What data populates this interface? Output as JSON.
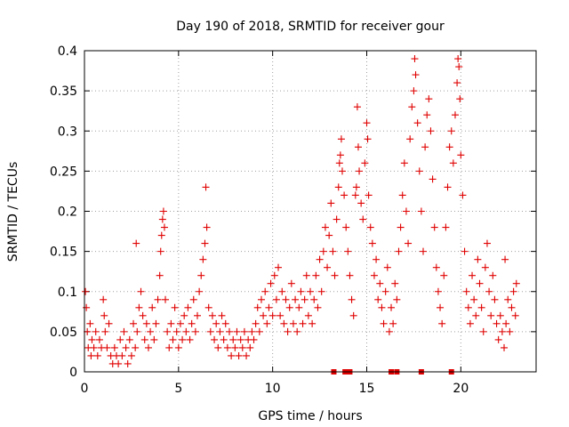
{
  "chart_data": {
    "type": "scatter",
    "title": "Day 190 of 2018, SRMTID for receiver gour",
    "xlabel": "GPS time / hours",
    "ylabel": "SRMTID / TECUs",
    "xlim": [
      0,
      24
    ],
    "ylim": [
      0,
      0.4
    ],
    "xticks": [
      0,
      5,
      10,
      15,
      20
    ],
    "xtick_labels": [
      "0",
      "5",
      "10",
      "15",
      "20"
    ],
    "yticks": [
      0,
      0.05,
      0.1,
      0.15,
      0.2,
      0.25,
      0.3,
      0.35,
      0.4
    ],
    "ytick_labels": [
      "0",
      "0.05",
      "0.1",
      "0.15",
      "0.2",
      "0.25",
      "0.3",
      "0.35",
      "0.4"
    ],
    "grid": true,
    "marker_color": "#e00000",
    "series": [
      {
        "name": "SRMTID",
        "marker": "plus",
        "points": [
          [
            0.05,
            0.1
          ],
          [
            0.1,
            0.08
          ],
          [
            0.15,
            0.05
          ],
          [
            0.2,
            0.03
          ],
          [
            0.3,
            0.06
          ],
          [
            0.35,
            0.02
          ],
          [
            0.4,
            0.04
          ],
          [
            0.5,
            0.03
          ],
          [
            0.6,
            0.05
          ],
          [
            0.7,
            0.02
          ],
          [
            0.8,
            0.04
          ],
          [
            0.9,
            0.03
          ],
          [
            1.0,
            0.09
          ],
          [
            1.05,
            0.07
          ],
          [
            1.1,
            0.05
          ],
          [
            1.2,
            0.03
          ],
          [
            1.3,
            0.06
          ],
          [
            1.4,
            0.02
          ],
          [
            1.5,
            0.01
          ],
          [
            1.6,
            0.03
          ],
          [
            1.7,
            0.02
          ],
          [
            1.8,
            0.01
          ],
          [
            1.9,
            0.04
          ],
          [
            2.0,
            0.02
          ],
          [
            2.1,
            0.05
          ],
          [
            2.2,
            0.03
          ],
          [
            2.3,
            0.01
          ],
          [
            2.4,
            0.04
          ],
          [
            2.5,
            0.02
          ],
          [
            2.6,
            0.06
          ],
          [
            2.7,
            0.03
          ],
          [
            2.75,
            0.16
          ],
          [
            2.8,
            0.05
          ],
          [
            2.9,
            0.08
          ],
          [
            3.0,
            0.1
          ],
          [
            3.1,
            0.07
          ],
          [
            3.2,
            0.04
          ],
          [
            3.3,
            0.06
          ],
          [
            3.4,
            0.03
          ],
          [
            3.5,
            0.05
          ],
          [
            3.6,
            0.08
          ],
          [
            3.7,
            0.04
          ],
          [
            3.8,
            0.06
          ],
          [
            3.9,
            0.09
          ],
          [
            4.0,
            0.12
          ],
          [
            4.05,
            0.15
          ],
          [
            4.1,
            0.17
          ],
          [
            4.15,
            0.19
          ],
          [
            4.2,
            0.2
          ],
          [
            4.25,
            0.18
          ],
          [
            4.3,
            0.09
          ],
          [
            4.4,
            0.05
          ],
          [
            4.5,
            0.03
          ],
          [
            4.6,
            0.06
          ],
          [
            4.7,
            0.04
          ],
          [
            4.8,
            0.08
          ],
          [
            4.9,
            0.05
          ],
          [
            5.0,
            0.03
          ],
          [
            5.1,
            0.06
          ],
          [
            5.2,
            0.04
          ],
          [
            5.3,
            0.07
          ],
          [
            5.4,
            0.05
          ],
          [
            5.5,
            0.08
          ],
          [
            5.6,
            0.04
          ],
          [
            5.7,
            0.06
          ],
          [
            5.8,
            0.09
          ],
          [
            5.9,
            0.05
          ],
          [
            6.0,
            0.07
          ],
          [
            6.1,
            0.1
          ],
          [
            6.2,
            0.12
          ],
          [
            6.3,
            0.14
          ],
          [
            6.4,
            0.16
          ],
          [
            6.45,
            0.23
          ],
          [
            6.5,
            0.18
          ],
          [
            6.6,
            0.08
          ],
          [
            6.7,
            0.05
          ],
          [
            6.8,
            0.07
          ],
          [
            6.9,
            0.04
          ],
          [
            7.0,
            0.06
          ],
          [
            7.1,
            0.03
          ],
          [
            7.2,
            0.05
          ],
          [
            7.3,
            0.07
          ],
          [
            7.4,
            0.04
          ],
          [
            7.5,
            0.06
          ],
          [
            7.6,
            0.03
          ],
          [
            7.7,
            0.05
          ],
          [
            7.8,
            0.02
          ],
          [
            7.9,
            0.04
          ],
          [
            8.0,
            0.03
          ],
          [
            8.1,
            0.05
          ],
          [
            8.2,
            0.02
          ],
          [
            8.3,
            0.04
          ],
          [
            8.4,
            0.03
          ],
          [
            8.5,
            0.05
          ],
          [
            8.6,
            0.02
          ],
          [
            8.7,
            0.04
          ],
          [
            8.8,
            0.03
          ],
          [
            8.9,
            0.05
          ],
          [
            9.0,
            0.04
          ],
          [
            9.1,
            0.06
          ],
          [
            9.2,
            0.08
          ],
          [
            9.3,
            0.05
          ],
          [
            9.4,
            0.09
          ],
          [
            9.5,
            0.07
          ],
          [
            9.6,
            0.1
          ],
          [
            9.7,
            0.06
          ],
          [
            9.8,
            0.08
          ],
          [
            9.9,
            0.11
          ],
          [
            10.0,
            0.07
          ],
          [
            10.1,
            0.12
          ],
          [
            10.2,
            0.09
          ],
          [
            10.3,
            0.13
          ],
          [
            10.4,
            0.07
          ],
          [
            10.5,
            0.1
          ],
          [
            10.6,
            0.06
          ],
          [
            10.7,
            0.09
          ],
          [
            10.8,
            0.05
          ],
          [
            10.9,
            0.08
          ],
          [
            11.0,
            0.11
          ],
          [
            11.1,
            0.06
          ],
          [
            11.2,
            0.09
          ],
          [
            11.3,
            0.05
          ],
          [
            11.4,
            0.08
          ],
          [
            11.5,
            0.1
          ],
          [
            11.6,
            0.06
          ],
          [
            11.7,
            0.09
          ],
          [
            11.8,
            0.12
          ],
          [
            11.9,
            0.07
          ],
          [
            12.0,
            0.1
          ],
          [
            12.1,
            0.06
          ],
          [
            12.2,
            0.09
          ],
          [
            12.3,
            0.12
          ],
          [
            12.4,
            0.08
          ],
          [
            12.5,
            0.14
          ],
          [
            12.6,
            0.1
          ],
          [
            12.7,
            0.15
          ],
          [
            12.8,
            0.18
          ],
          [
            12.9,
            0.13
          ],
          [
            13.0,
            0.17
          ],
          [
            13.1,
            0.21
          ],
          [
            13.2,
            0.15
          ],
          [
            13.3,
            0.12
          ],
          [
            13.4,
            0.19
          ],
          [
            13.5,
            0.23
          ],
          [
            13.55,
            0.26
          ],
          [
            13.6,
            0.27
          ],
          [
            13.65,
            0.29
          ],
          [
            13.7,
            0.25
          ],
          [
            13.8,
            0.22
          ],
          [
            13.9,
            0.18
          ],
          [
            14.0,
            0.15
          ],
          [
            14.1,
            0.12
          ],
          [
            14.2,
            0.09
          ],
          [
            14.3,
            0.07
          ],
          [
            14.4,
            0.22
          ],
          [
            14.45,
            0.23
          ],
          [
            14.5,
            0.33
          ],
          [
            14.55,
            0.28
          ],
          [
            14.6,
            0.25
          ],
          [
            14.7,
            0.21
          ],
          [
            14.8,
            0.19
          ],
          [
            14.9,
            0.26
          ],
          [
            15.0,
            0.31
          ],
          [
            15.05,
            0.29
          ],
          [
            15.1,
            0.22
          ],
          [
            15.2,
            0.18
          ],
          [
            15.3,
            0.16
          ],
          [
            15.4,
            0.12
          ],
          [
            15.5,
            0.14
          ],
          [
            15.6,
            0.09
          ],
          [
            15.7,
            0.11
          ],
          [
            15.8,
            0.08
          ],
          [
            15.9,
            0.06
          ],
          [
            16.0,
            0.1
          ],
          [
            16.1,
            0.13
          ],
          [
            16.2,
            0.05
          ],
          [
            16.3,
            0.08
          ],
          [
            16.4,
            0.06
          ],
          [
            16.5,
            0.11
          ],
          [
            16.6,
            0.09
          ],
          [
            16.7,
            0.15
          ],
          [
            16.8,
            0.18
          ],
          [
            16.9,
            0.22
          ],
          [
            17.0,
            0.26
          ],
          [
            17.1,
            0.2
          ],
          [
            17.2,
            0.16
          ],
          [
            17.3,
            0.29
          ],
          [
            17.4,
            0.33
          ],
          [
            17.5,
            0.35
          ],
          [
            17.55,
            0.39
          ],
          [
            17.6,
            0.37
          ],
          [
            17.7,
            0.31
          ],
          [
            17.8,
            0.25
          ],
          [
            17.9,
            0.2
          ],
          [
            18.0,
            0.15
          ],
          [
            18.1,
            0.28
          ],
          [
            18.2,
            0.32
          ],
          [
            18.3,
            0.34
          ],
          [
            18.4,
            0.3
          ],
          [
            18.5,
            0.24
          ],
          [
            18.6,
            0.18
          ],
          [
            18.7,
            0.13
          ],
          [
            18.8,
            0.1
          ],
          [
            18.9,
            0.08
          ],
          [
            19.0,
            0.06
          ],
          [
            19.1,
            0.12
          ],
          [
            19.2,
            0.18
          ],
          [
            19.3,
            0.23
          ],
          [
            19.4,
            0.28
          ],
          [
            19.5,
            0.3
          ],
          [
            19.6,
            0.26
          ],
          [
            19.7,
            0.32
          ],
          [
            19.8,
            0.36
          ],
          [
            19.85,
            0.39
          ],
          [
            19.9,
            0.38
          ],
          [
            19.95,
            0.34
          ],
          [
            20.0,
            0.27
          ],
          [
            20.1,
            0.22
          ],
          [
            20.2,
            0.15
          ],
          [
            20.3,
            0.1
          ],
          [
            20.4,
            0.08
          ],
          [
            20.5,
            0.06
          ],
          [
            20.6,
            0.12
          ],
          [
            20.7,
            0.09
          ],
          [
            20.8,
            0.07
          ],
          [
            20.9,
            0.14
          ],
          [
            21.0,
            0.11
          ],
          [
            21.1,
            0.08
          ],
          [
            21.2,
            0.05
          ],
          [
            21.3,
            0.13
          ],
          [
            21.4,
            0.16
          ],
          [
            21.5,
            0.1
          ],
          [
            21.6,
            0.07
          ],
          [
            21.7,
            0.12
          ],
          [
            21.8,
            0.09
          ],
          [
            21.9,
            0.06
          ],
          [
            22.0,
            0.04
          ],
          [
            22.1,
            0.07
          ],
          [
            22.2,
            0.05
          ],
          [
            22.3,
            0.03
          ],
          [
            22.35,
            0.14
          ],
          [
            22.4,
            0.06
          ],
          [
            22.5,
            0.09
          ],
          [
            22.6,
            0.05
          ],
          [
            22.7,
            0.08
          ],
          [
            22.8,
            0.1
          ],
          [
            22.9,
            0.07
          ],
          [
            22.95,
            0.11
          ]
        ]
      },
      {
        "name": "bottom-markers",
        "marker": "square",
        "points": [
          [
            13.25,
            0
          ],
          [
            13.85,
            0
          ],
          [
            14.0,
            0
          ],
          [
            14.1,
            0
          ],
          [
            16.3,
            0
          ],
          [
            16.6,
            0
          ],
          [
            17.9,
            0
          ],
          [
            19.5,
            0
          ]
        ]
      }
    ]
  }
}
